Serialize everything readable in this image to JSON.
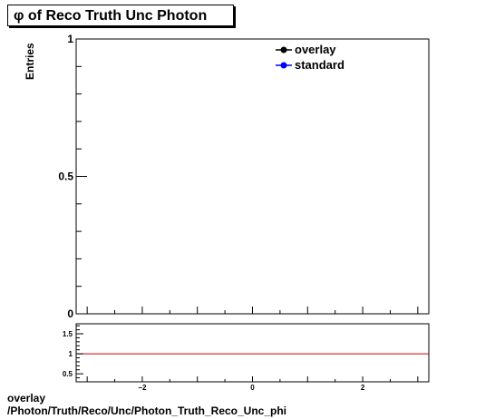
{
  "title": "φ of Reco Truth Unc Photon",
  "footer": {
    "line1": "overlay",
    "line2": "/Photon/Truth/Reco/Unc/Photon_Truth_Reco_Unc_phi"
  },
  "chart_data": [
    {
      "type": "line",
      "ylabel": "Entries",
      "xlim": [
        -3.2,
        3.2
      ],
      "ylim": [
        0,
        1
      ],
      "yticks": [
        {
          "v": 0,
          "label": "0"
        },
        {
          "v": 0.5,
          "label": "0.5"
        },
        {
          "v": 1,
          "label": "1"
        }
      ],
      "legend_placement": "top-right",
      "series": [
        {
          "name": "overlay",
          "color": "#000000",
          "values": []
        },
        {
          "name": "standard",
          "color": "#0000ff",
          "values": []
        }
      ]
    },
    {
      "type": "line",
      "xlim": [
        -3.2,
        3.2
      ],
      "ylim": [
        0.3,
        1.75
      ],
      "xticks": [
        {
          "v": -2,
          "label": "−2"
        },
        {
          "v": 0,
          "label": "0"
        },
        {
          "v": 2,
          "label": "2"
        }
      ],
      "yticks": [
        {
          "v": 0.5,
          "label": "0.5"
        },
        {
          "v": 1,
          "label": "1"
        },
        {
          "v": 1.5,
          "label": "1.5"
        }
      ],
      "reference_line": {
        "y": 1,
        "color": "#cc0000"
      }
    }
  ]
}
